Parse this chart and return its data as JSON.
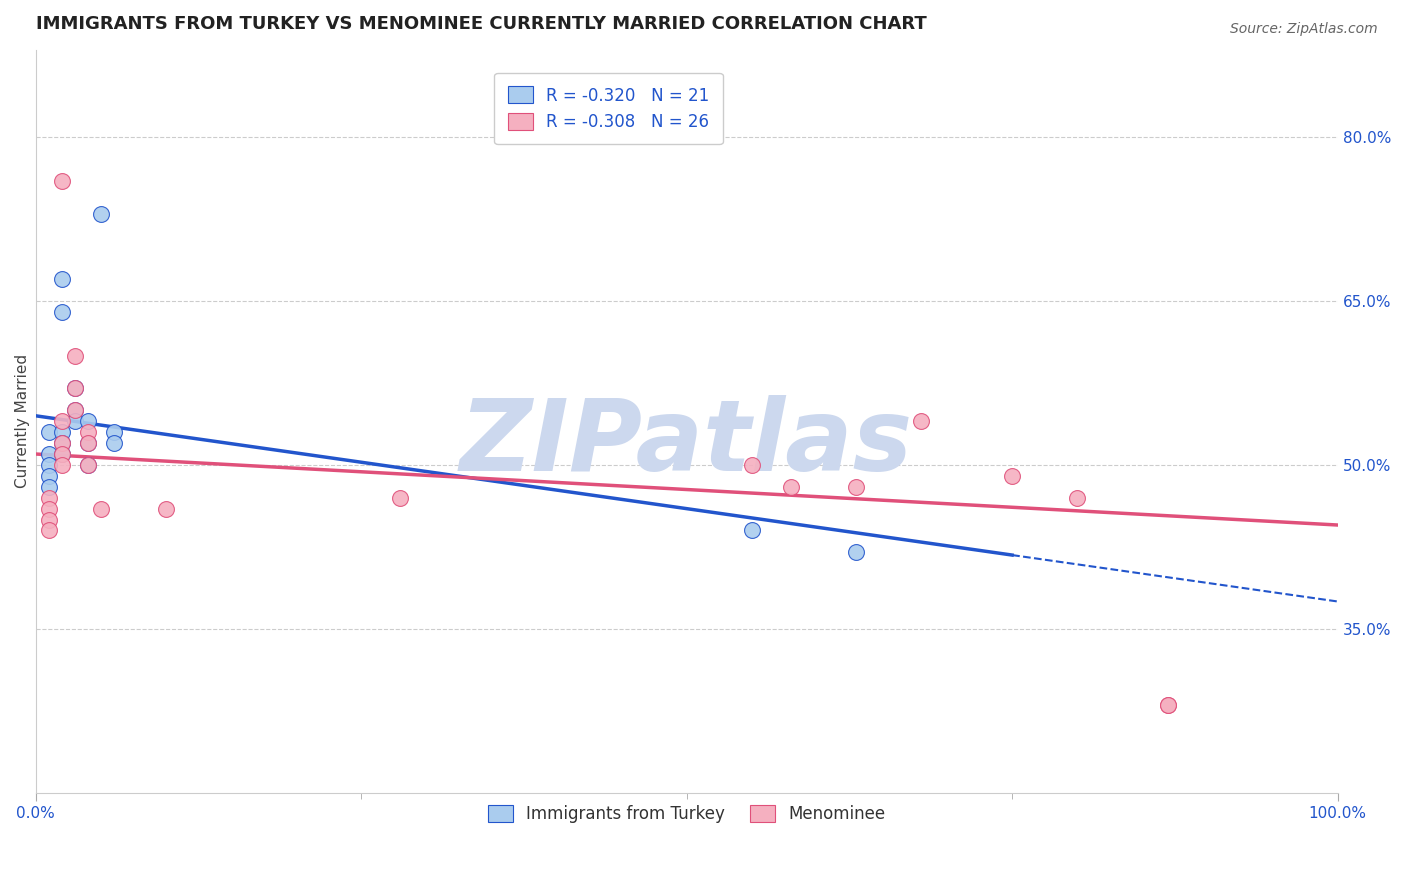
{
  "title": "IMMIGRANTS FROM TURKEY VS MENOMINEE CURRENTLY MARRIED CORRELATION CHART",
  "source_text": "Source: ZipAtlas.com",
  "xlabel": "",
  "ylabel": "Currently Married",
  "right_ytick_labels": [
    "80.0%",
    "65.0%",
    "50.0%",
    "35.0%"
  ],
  "right_ytick_values": [
    0.8,
    0.65,
    0.5,
    0.35
  ],
  "xlim": [
    0.0,
    1.0
  ],
  "ylim": [
    0.2,
    0.88
  ],
  "xtick_labels": [
    "0.0%",
    "100.0%"
  ],
  "xtick_values": [
    0.0,
    1.0
  ],
  "legend_entries": [
    {
      "label": "R = -0.320   N = 21",
      "color": "#aaccee"
    },
    {
      "label": "R = -0.308   N = 26",
      "color": "#f5b0c0"
    }
  ],
  "blue_scatter_x": [
    0.01,
    0.01,
    0.01,
    0.01,
    0.01,
    0.02,
    0.02,
    0.02,
    0.02,
    0.02,
    0.03,
    0.03,
    0.03,
    0.04,
    0.04,
    0.04,
    0.05,
    0.06,
    0.06,
    0.55,
    0.63
  ],
  "blue_scatter_y": [
    0.53,
    0.51,
    0.5,
    0.49,
    0.48,
    0.53,
    0.52,
    0.51,
    0.67,
    0.64,
    0.57,
    0.55,
    0.54,
    0.54,
    0.52,
    0.5,
    0.73,
    0.53,
    0.52,
    0.44,
    0.42
  ],
  "pink_scatter_x": [
    0.01,
    0.01,
    0.01,
    0.01,
    0.02,
    0.02,
    0.02,
    0.02,
    0.03,
    0.03,
    0.03,
    0.04,
    0.04,
    0.04,
    0.05,
    0.1,
    0.55,
    0.58,
    0.63,
    0.68,
    0.75,
    0.8,
    0.87,
    0.02,
    0.28,
    0.87
  ],
  "pink_scatter_y": [
    0.47,
    0.46,
    0.45,
    0.44,
    0.54,
    0.52,
    0.51,
    0.5,
    0.6,
    0.57,
    0.55,
    0.53,
    0.52,
    0.5,
    0.46,
    0.46,
    0.5,
    0.48,
    0.48,
    0.54,
    0.49,
    0.47,
    0.28,
    0.76,
    0.47,
    0.28
  ],
  "blue_line_start_y": 0.545,
  "blue_line_end_y": 0.375,
  "blue_line_solid_end_x": 0.75,
  "pink_line_start_y": 0.51,
  "pink_line_end_y": 0.445,
  "blue_line_color": "#2255cc",
  "pink_line_color": "#e0507a",
  "grid_color": "#cccccc",
  "watermark": "ZIPatlas",
  "watermark_color": "#ccd8ee",
  "background_color": "#ffffff",
  "title_fontsize": 13,
  "axis_label_fontsize": 11,
  "tick_fontsize": 11,
  "legend_fontsize": 12
}
